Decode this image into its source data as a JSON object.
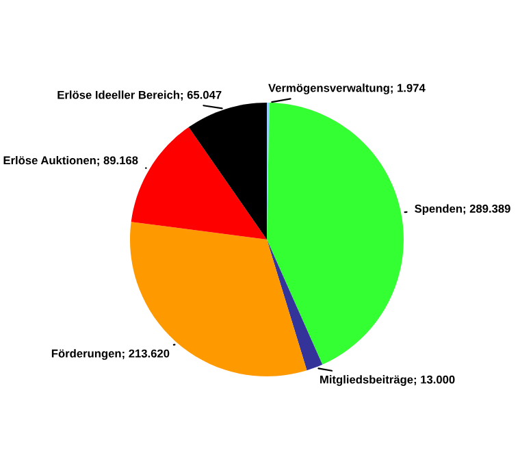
{
  "chart_data": {
    "type": "pie",
    "categories": [
      "Vermögensverwaltung",
      "Spenden",
      "Mitgliedsbeiträge",
      "Förderungen",
      "Erlöse Auktionen",
      "Erlöse Ideeller Bereich"
    ],
    "values": [
      1974,
      289389,
      13000,
      213620,
      89168,
      65047
    ],
    "value_labels": [
      "1.974",
      "289.389",
      "13.000",
      "213.620",
      "89.168",
      "65.047"
    ],
    "colors": [
      "#99ccff",
      "#33ff33",
      "#333399",
      "#ff9900",
      "#ff0000",
      "#000000"
    ],
    "legend": false
  }
}
